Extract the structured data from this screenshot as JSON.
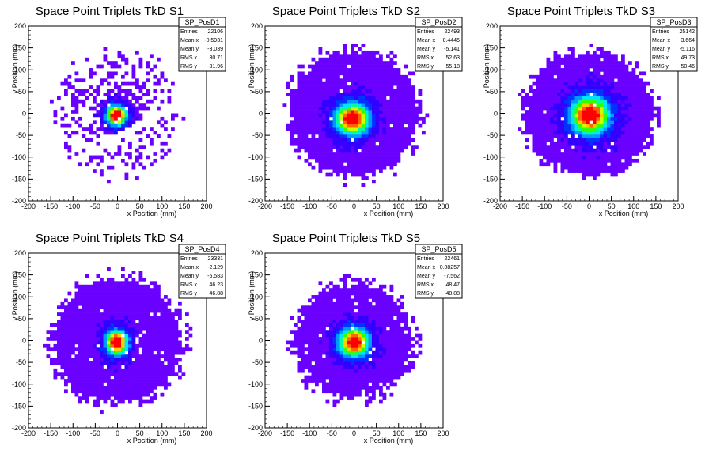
{
  "colors": {
    "background": "#ffffff",
    "axis": "#000000",
    "palette": [
      "#6a00ff",
      "#3300ff",
      "#0033ff",
      "#0099ff",
      "#00e5ff",
      "#00ff99",
      "#33ff00",
      "#ccff00",
      "#ffcc00",
      "#ff6600",
      "#ff0000"
    ]
  },
  "chart_data": [
    {
      "type": "heatmap",
      "title": "Space Point Triplets TkD S1",
      "xlabel": "x Position (mm)",
      "ylabel": "y Position (mm)",
      "xlim": [
        -200,
        200
      ],
      "ylim": [
        -200,
        200
      ],
      "xticks": [
        -200,
        -150,
        -100,
        -50,
        0,
        50,
        100,
        150,
        200
      ],
      "yticks": [
        -200,
        -150,
        -100,
        -50,
        0,
        50,
        100,
        150,
        200
      ],
      "grid": false,
      "stats": {
        "name": "SP_PosD1",
        "rows": [
          {
            "label": "Entries",
            "value": "22106"
          },
          {
            "label": "Mean x",
            "value": "-0.5931"
          },
          {
            "label": "Mean y",
            "value": "-3.039"
          },
          {
            "label": "RMS x",
            "value": "30.71"
          },
          {
            "label": "RMS y",
            "value": "31.96"
          }
        ]
      },
      "distribution": {
        "center": [
          -2,
          -4
        ],
        "sigma": [
          14,
          14
        ],
        "edge_radius": 150,
        "dense_radius": 45,
        "gap_band": {
          "slope": 0.55,
          "offset": -55,
          "width": 22
        }
      }
    },
    {
      "type": "heatmap",
      "title": "Space Point Triplets TkD S2",
      "xlabel": "x Position (mm)",
      "ylabel": "y Position (mm)",
      "xlim": [
        -200,
        200
      ],
      "ylim": [
        -200,
        200
      ],
      "xticks": [
        -200,
        -150,
        -100,
        -50,
        0,
        50,
        100,
        150,
        200
      ],
      "yticks": [
        -200,
        -150,
        -100,
        -50,
        0,
        50,
        100,
        150,
        200
      ],
      "grid": false,
      "stats": {
        "name": "SP_PosD2",
        "rows": [
          {
            "label": "Entries",
            "value": "22493"
          },
          {
            "label": "Mean x",
            "value": "0.4445"
          },
          {
            "label": "Mean y",
            "value": "-5.141"
          },
          {
            "label": "RMS x",
            "value": "52.63"
          },
          {
            "label": "RMS y",
            "value": "55.18"
          }
        ]
      },
      "distribution": {
        "center": [
          -4,
          -12
        ],
        "sigma": [
          22,
          22
        ],
        "edge_radius": 160,
        "dense_radius": 140
      }
    },
    {
      "type": "heatmap",
      "title": "Space Point Triplets TkD S3",
      "xlabel": "x Position (mm)",
      "ylabel": "y Position (mm)",
      "xlim": [
        -200,
        200
      ],
      "ylim": [
        -200,
        200
      ],
      "xticks": [
        -200,
        -150,
        -100,
        -50,
        0,
        50,
        100,
        150,
        200
      ],
      "yticks": [
        -200,
        -150,
        -100,
        -50,
        0,
        50,
        100,
        150,
        200
      ],
      "grid": false,
      "stats": {
        "name": "SP_PosD3",
        "rows": [
          {
            "label": "Entries",
            "value": "25142"
          },
          {
            "label": "Mean x",
            "value": "3.664"
          },
          {
            "label": "Mean y",
            "value": "-5.116"
          },
          {
            "label": "RMS x",
            "value": "49.73"
          },
          {
            "label": "RMS y",
            "value": "50.46"
          }
        ]
      },
      "distribution": {
        "center": [
          2,
          -4
        ],
        "sigma": [
          26,
          26
        ],
        "edge_radius": 155,
        "dense_radius": 140
      }
    },
    {
      "type": "heatmap",
      "title": "Space Point Triplets TkD S4",
      "xlabel": "x Position (mm)",
      "ylabel": "y Position (mm)",
      "xlim": [
        -200,
        200
      ],
      "ylim": [
        -200,
        200
      ],
      "xticks": [
        -200,
        -150,
        -100,
        -50,
        0,
        50,
        100,
        150,
        200
      ],
      "yticks": [
        -200,
        -150,
        -100,
        -50,
        0,
        50,
        100,
        150,
        200
      ],
      "grid": false,
      "stats": {
        "name": "SP_PosD4",
        "rows": [
          {
            "label": "Entries",
            "value": "23331"
          },
          {
            "label": "Mean x",
            "value": "-2.129"
          },
          {
            "label": "Mean y",
            "value": "-5.583"
          },
          {
            "label": "RMS x",
            "value": "46.23"
          },
          {
            "label": "RMS y",
            "value": "46.88"
          }
        ]
      },
      "distribution": {
        "center": [
          -2,
          -4
        ],
        "sigma": [
          15,
          17
        ],
        "edge_radius": 160,
        "dense_radius": 140
      }
    },
    {
      "type": "heatmap",
      "title": "Space Point Triplets TkD S5",
      "xlabel": "x Position (mm)",
      "ylabel": "y Position (mm)",
      "xlim": [
        -200,
        200
      ],
      "ylim": [
        -200,
        200
      ],
      "xticks": [
        -200,
        -150,
        -100,
        -50,
        0,
        50,
        100,
        150,
        200
      ],
      "yticks": [
        -200,
        -150,
        -100,
        -50,
        0,
        50,
        100,
        150,
        200
      ],
      "grid": false,
      "stats": {
        "name": "SP_PosD5",
        "rows": [
          {
            "label": "Entries",
            "value": "22461"
          },
          {
            "label": "Mean x",
            "value": "0.08257"
          },
          {
            "label": "Mean y",
            "value": "-7.562"
          },
          {
            "label": "RMS x",
            "value": "48.47"
          },
          {
            "label": "RMS y",
            "value": "48.88"
          }
        ]
      },
      "distribution": {
        "center": [
          0,
          -4
        ],
        "sigma": [
          20,
          20
        ],
        "edge_radius": 150,
        "dense_radius": 125
      }
    }
  ]
}
